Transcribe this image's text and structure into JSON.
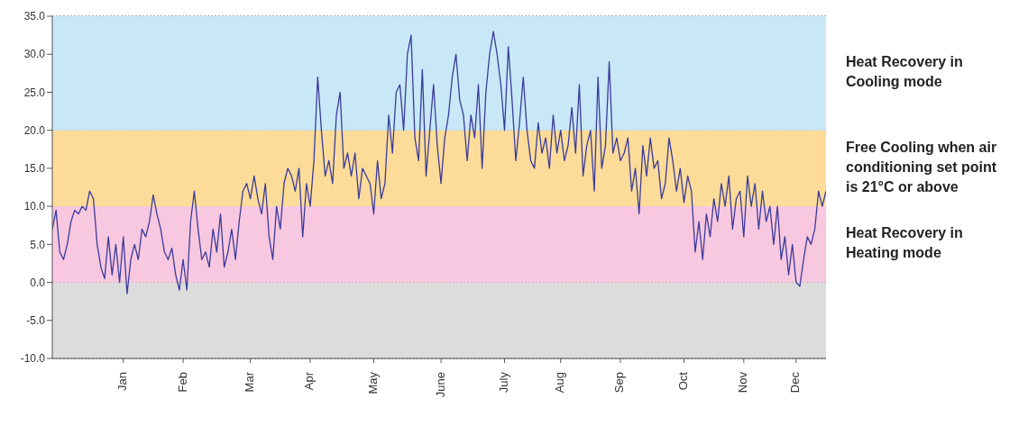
{
  "chart_data": {
    "type": "line",
    "categories": [
      null,
      null,
      null,
      null,
      null,
      null,
      null,
      null,
      null,
      null,
      null,
      null,
      null,
      null,
      null,
      null,
      null,
      null,
      null,
      "Jan",
      null,
      null,
      null,
      null,
      null,
      null,
      null,
      null,
      null,
      null,
      null,
      null,
      null,
      null,
      null,
      "Feb",
      null,
      null,
      null,
      null,
      null,
      null,
      null,
      null,
      null,
      null,
      null,
      null,
      null,
      null,
      null,
      null,
      null,
      "Mar",
      null,
      null,
      null,
      null,
      null,
      null,
      null,
      null,
      null,
      null,
      null,
      null,
      null,
      null,
      null,
      "Apr",
      null,
      null,
      null,
      null,
      null,
      null,
      null,
      null,
      null,
      null,
      null,
      null,
      null,
      null,
      null,
      null,
      "May",
      null,
      null,
      null,
      null,
      null,
      null,
      null,
      null,
      null,
      null,
      null,
      null,
      null,
      null,
      null,
      null,
      null,
      "June",
      null,
      null,
      null,
      null,
      null,
      null,
      null,
      null,
      null,
      null,
      null,
      null,
      null,
      null,
      null,
      null,
      "July",
      null,
      null,
      null,
      null,
      null,
      null,
      null,
      null,
      null,
      null,
      null,
      null,
      null,
      null,
      "Aug",
      null,
      null,
      null,
      null,
      null,
      null,
      null,
      null,
      null,
      null,
      null,
      null,
      null,
      null,
      null,
      "Sep",
      null,
      null,
      null,
      null,
      null,
      null,
      null,
      null,
      null,
      null,
      null,
      null,
      null,
      null,
      null,
      null,
      "Oct",
      null,
      null,
      null,
      null,
      null,
      null,
      null,
      null,
      null,
      null,
      null,
      null,
      null,
      null,
      null,
      "Nov",
      null,
      null,
      null,
      null,
      null,
      null,
      null,
      null,
      null,
      null,
      null,
      null,
      null,
      "Dec",
      null,
      null,
      null,
      null,
      null,
      null,
      null,
      null
    ],
    "ylim": [
      -10,
      35
    ],
    "yticks": [
      {
        "value": -10,
        "label": "-10.0"
      },
      {
        "value": -5,
        "label": "-5.0"
      },
      {
        "value": 0,
        "label": "0.0"
      },
      {
        "value": 5,
        "label": "5.0"
      },
      {
        "value": 10,
        "label": "10.0"
      },
      {
        "value": 15,
        "label": "15.0"
      },
      {
        "value": 20,
        "label": "20.0"
      },
      {
        "value": 25,
        "label": "25.0"
      },
      {
        "value": 30,
        "label": "30.0"
      },
      {
        "value": 35,
        "label": "35.0"
      }
    ],
    "grid": "y",
    "marker": "none",
    "line_style": "solid",
    "bands": [
      {
        "axis": "y",
        "from": -10,
        "to": 0,
        "label": null,
        "color": "#dcdcdc"
      },
      {
        "axis": "y",
        "from": 0,
        "to": 10,
        "label": "Heat Recovery in Heating mode",
        "color": "#f8c8e0"
      },
      {
        "axis": "y",
        "from": 10,
        "to": 20,
        "label": "Free Cooling when air conditioning set point is 21°C or above",
        "color": "#fcdc98"
      },
      {
        "axis": "y",
        "from": 20,
        "to": 35,
        "label": "Heat Recovery in Cooling mode",
        "color": "#c8e8f8"
      }
    ],
    "series": [
      {
        "color": "#3b3b9a",
        "values": [
          7,
          9.5,
          4,
          3,
          5,
          8,
          9.5,
          9,
          10,
          9.5,
          12,
          11,
          5,
          2,
          0.5,
          6,
          1,
          5,
          0,
          6,
          -1.5,
          3,
          5,
          3,
          7,
          6,
          8,
          11.5,
          9,
          7,
          4,
          3,
          4.5,
          1,
          -1,
          3,
          -1,
          8,
          12,
          7,
          3,
          4,
          2,
          7,
          4,
          9,
          2,
          4,
          7,
          3,
          8,
          12,
          13,
          11,
          14,
          11,
          9,
          13,
          6,
          3,
          10,
          7,
          13,
          15,
          14,
          12,
          15,
          6,
          13,
          10,
          16,
          27,
          20,
          14,
          16,
          13,
          22,
          25,
          15,
          17,
          14,
          17,
          11,
          15,
          14,
          13,
          9,
          16,
          11,
          13,
          22,
          17,
          25,
          26,
          20,
          30,
          32.5,
          19,
          16,
          28,
          14,
          20,
          26,
          18,
          13,
          19,
          22,
          27,
          30,
          24,
          22,
          16,
          22,
          19,
          26,
          15,
          25,
          30,
          33,
          30,
          26,
          20,
          31,
          24,
          16,
          21,
          27,
          20,
          16,
          15,
          21,
          17,
          19,
          15,
          22,
          17,
          20,
          16,
          18,
          23,
          17,
          26,
          14,
          18,
          20,
          12,
          27,
          15,
          18,
          29,
          17,
          19,
          16,
          17,
          19,
          12,
          15,
          9,
          18,
          14,
          19,
          15,
          16,
          11,
          13,
          19,
          16,
          12,
          15,
          10.5,
          14,
          12,
          4,
          8,
          3,
          9,
          6,
          11,
          8,
          13,
          10,
          14,
          7,
          11,
          12,
          6,
          14,
          10,
          13,
          7,
          12,
          8,
          10,
          5,
          10,
          3,
          6,
          1,
          5,
          0,
          -0.5,
          3,
          6,
          5,
          7,
          12,
          10,
          12
        ]
      }
    ]
  }
}
